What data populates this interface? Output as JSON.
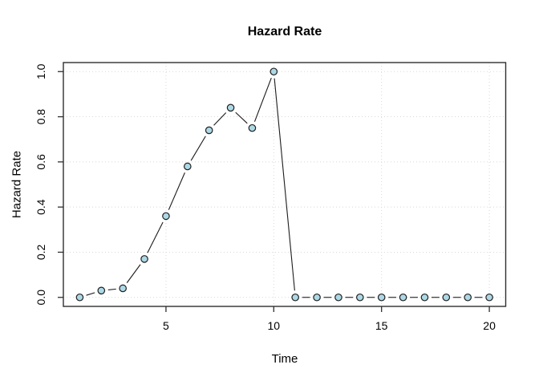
{
  "chart_data": {
    "type": "line",
    "title": "Hazard Rate",
    "xlabel": "Time",
    "ylabel": "Hazard Rate",
    "x": [
      1,
      2,
      3,
      4,
      5,
      6,
      7,
      8,
      9,
      10,
      11,
      12,
      13,
      14,
      15,
      16,
      17,
      18,
      19,
      20
    ],
    "values": [
      0.0,
      0.03,
      0.04,
      0.17,
      0.36,
      0.58,
      0.74,
      0.84,
      0.75,
      1.0,
      0.0,
      0.0,
      0.0,
      0.0,
      0.0,
      0.0,
      0.0,
      0.0,
      0.0,
      0.0
    ],
    "xticks": [
      "5",
      "10",
      "15",
      "20"
    ],
    "yticks": [
      "0.0",
      "0.2",
      "0.4",
      "0.6",
      "0.8",
      "1.0"
    ],
    "xlim": [
      0.24,
      20.76
    ],
    "ylim": [
      -0.04,
      1.04
    ],
    "grid": true,
    "legend": null,
    "marker": "open-circle",
    "line_style": "points-with-gapped-segments",
    "colors": {
      "marker_fill": "#ADD8E6",
      "marker_stroke": "#1f1f1f",
      "line": "#1c1c1c",
      "grid": "#d8d8d8",
      "axis": "#2f2f2f",
      "text": "#000000",
      "background": "#ffffff"
    }
  }
}
